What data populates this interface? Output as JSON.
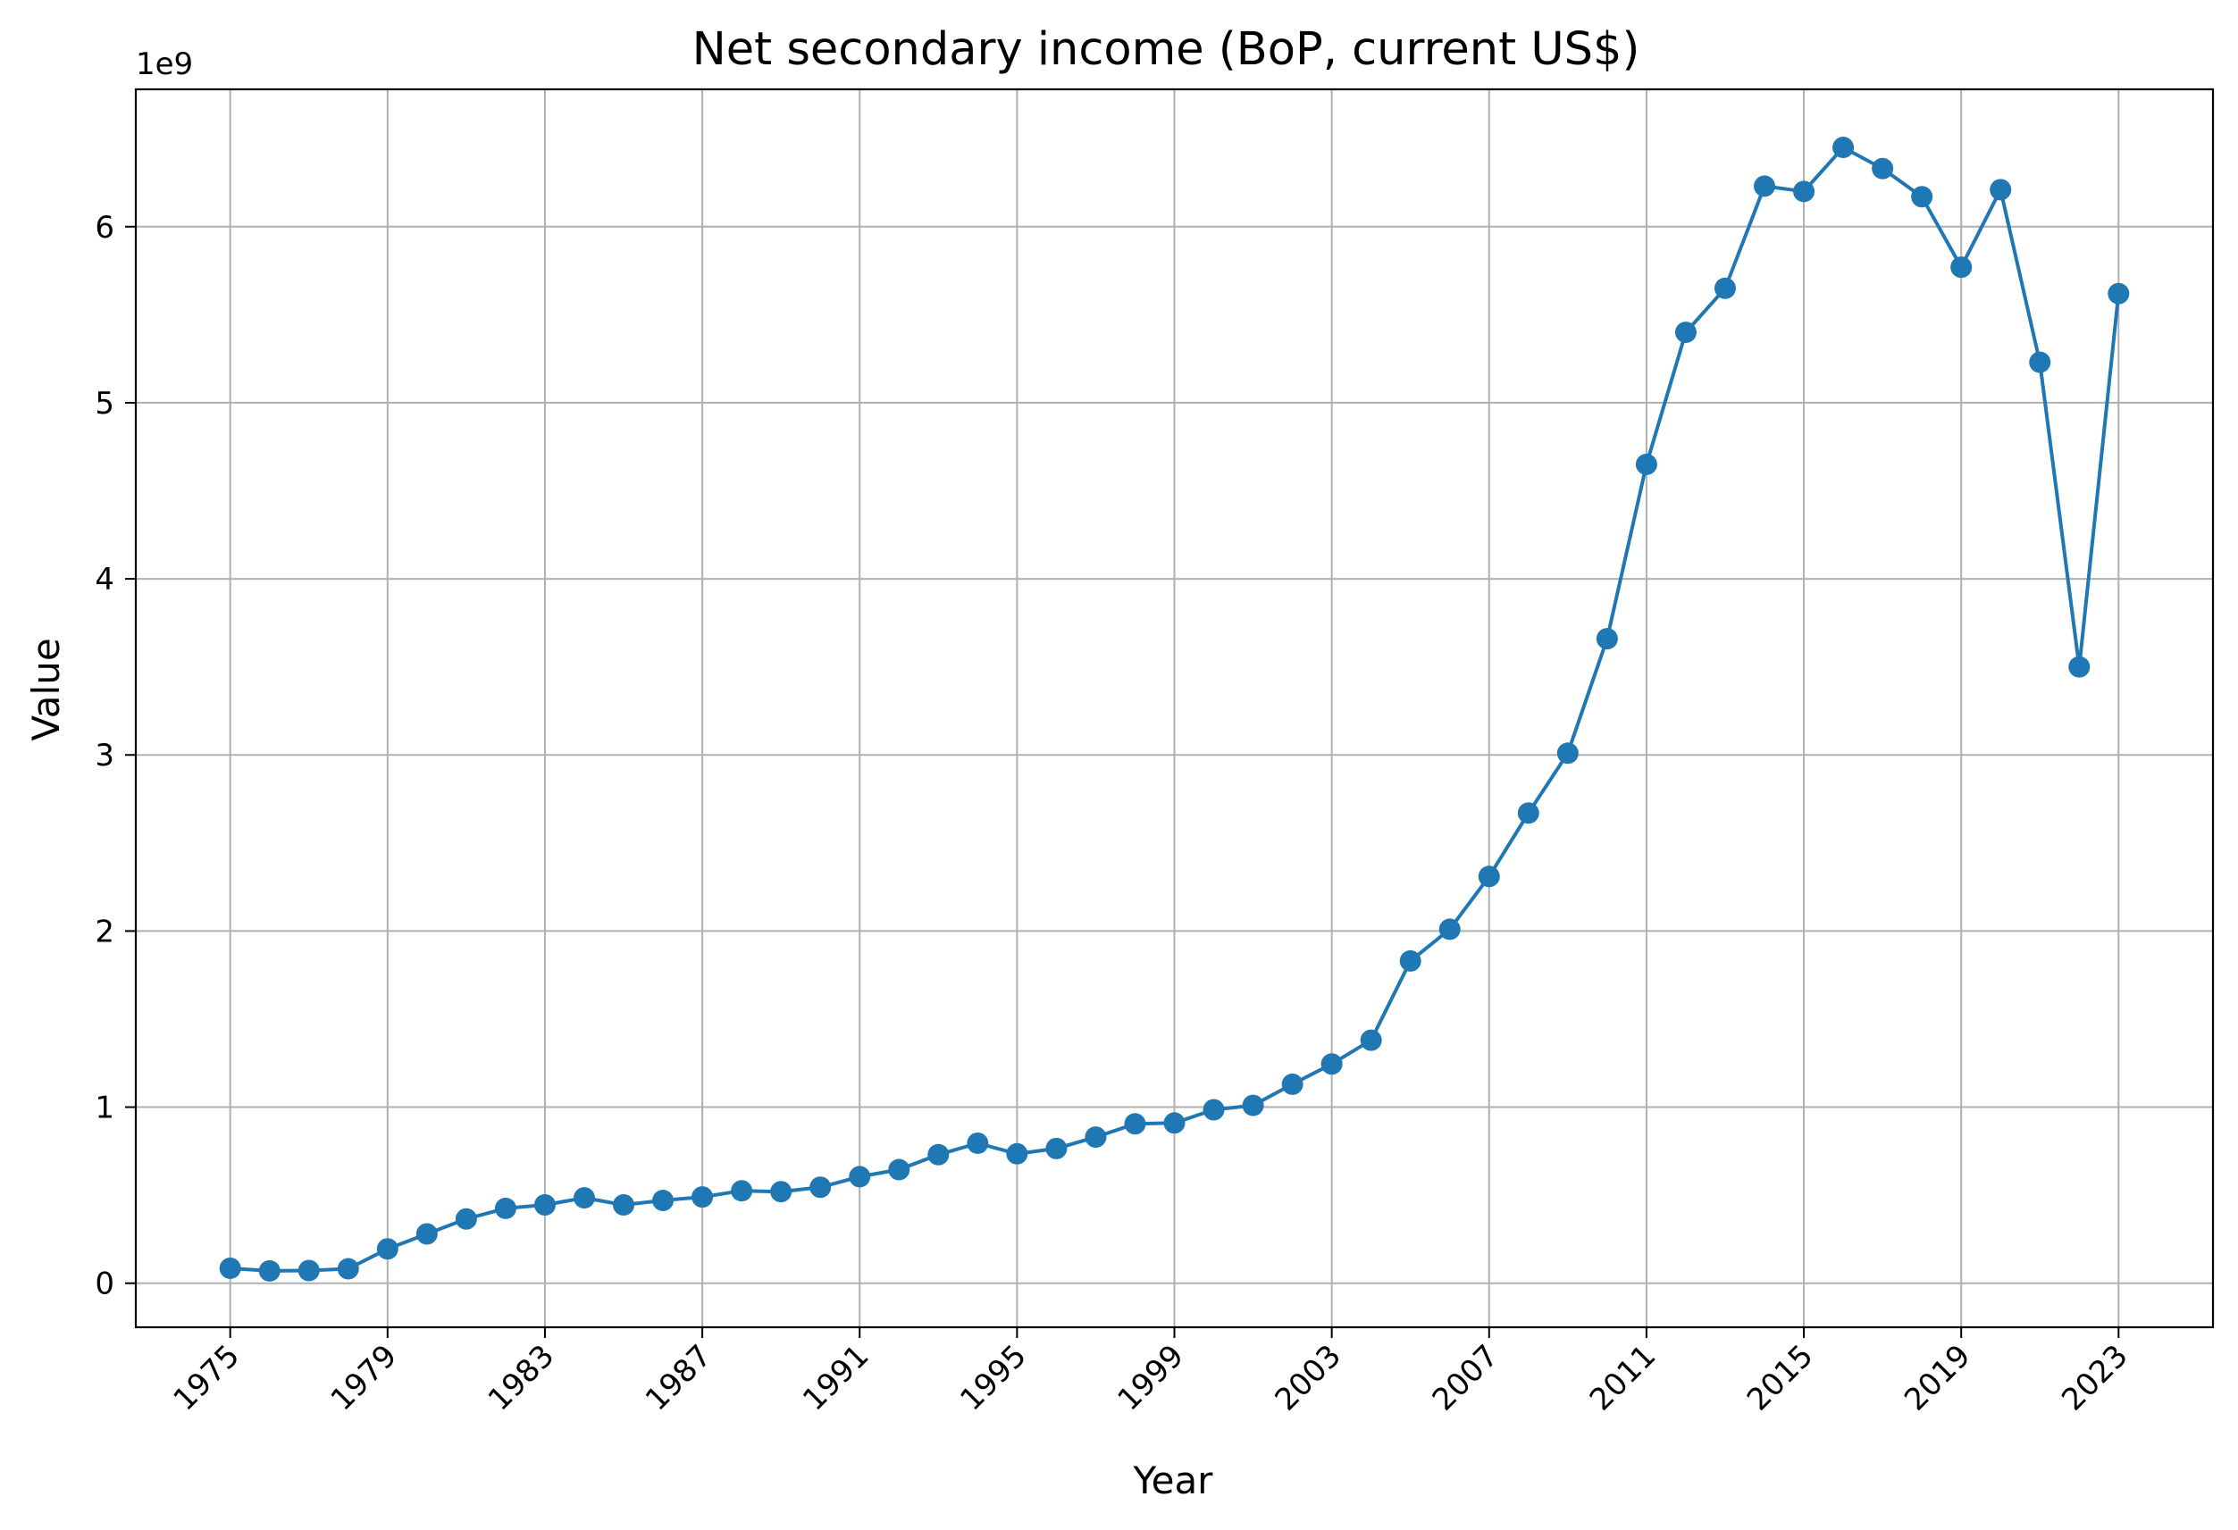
{
  "chart_data": {
    "type": "line",
    "title": "Net secondary income (BoP, current US$)",
    "xlabel": "Year",
    "ylabel": "Value",
    "y_offset_label": "1e9",
    "y_scale": 1000000000,
    "xlim": [
      1972.6,
      2025.4
    ],
    "ylim": [
      -250000000,
      6780000000
    ],
    "x_ticks": [
      1975,
      1979,
      1983,
      1987,
      1991,
      1995,
      1999,
      2003,
      2007,
      2011,
      2015,
      2019,
      2023
    ],
    "y_ticks": [
      0,
      1,
      2,
      3,
      4,
      5,
      6
    ],
    "grid": true,
    "x_tick_rotation": "45 degrees",
    "colors": {
      "line": "#1f77b4",
      "marker": "#1f77b4",
      "grid": "#b0b0b0",
      "axes": "#000000"
    },
    "series": [
      {
        "marker": "circle",
        "x": [
          1975,
          1976,
          1977,
          1978,
          1979,
          1980,
          1981,
          1982,
          1983,
          1984,
          1985,
          1986,
          1987,
          1988,
          1989,
          1990,
          1991,
          1992,
          1993,
          1994,
          1995,
          1996,
          1997,
          1998,
          1999,
          2000,
          2001,
          2002,
          2003,
          2004,
          2005,
          2006,
          2007,
          2008,
          2009,
          2010,
          2011,
          2012,
          2013,
          2014,
          2015,
          2016,
          2017,
          2018,
          2019,
          2020,
          2021,
          2022,
          2023
        ],
        "values": [
          85000000,
          70000000,
          72000000,
          82000000,
          195000000,
          280000000,
          365000000,
          425000000,
          445000000,
          485000000,
          445000000,
          470000000,
          490000000,
          525000000,
          520000000,
          545000000,
          605000000,
          645000000,
          730000000,
          795000000,
          735000000,
          765000000,
          830000000,
          905000000,
          910000000,
          985000000,
          1010000000,
          1130000000,
          1245000000,
          1380000000,
          1830000000,
          2010000000,
          2310000000,
          2670000000,
          3010000000,
          3660000000,
          4650000000,
          5400000000,
          5650000000,
          6230000000,
          6200000000,
          6450000000,
          6330000000,
          6170000000,
          5770000000,
          6210000000,
          5230000000,
          3500000000,
          5620000000
        ]
      }
    ]
  }
}
